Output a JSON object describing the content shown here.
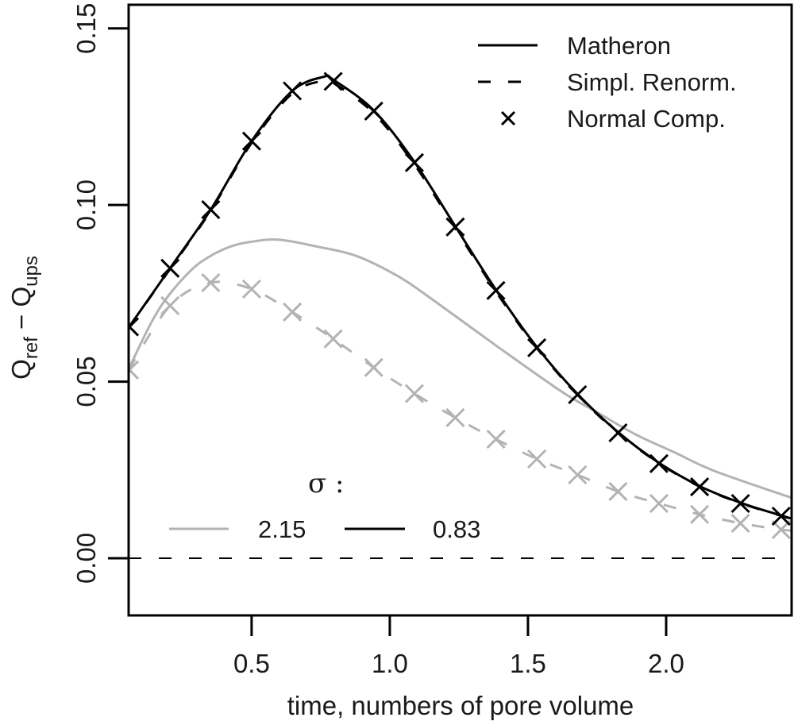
{
  "chart_data": {
    "type": "line",
    "title": "",
    "xlabel": "time, numbers of pore volume",
    "ylabel": {
      "base": "Q",
      "sub1": "ref",
      "op": " − ",
      "base2": "Q",
      "sub2": "ups"
    },
    "xlim": [
      0.055,
      2.454
    ],
    "ylim": [
      -0.0162,
      0.1567
    ],
    "x_ticks": [
      0.5,
      1.0,
      1.5,
      2.0
    ],
    "x_tick_labels": [
      "0.5",
      "1.0",
      "1.5",
      "2.0"
    ],
    "y_ticks": [
      0.0,
      0.05,
      0.1,
      0.15
    ],
    "y_tick_labels": [
      "0.00",
      "0.05",
      "0.10",
      "0.15"
    ],
    "grid": false,
    "reference_line": {
      "y": 0.0,
      "style": "dashed",
      "color": "#000000"
    },
    "method_legend": {
      "placement": "top-right",
      "entries": [
        {
          "label": "Matheron",
          "style": "solid"
        },
        {
          "label": "Simpl. Renorm.",
          "style": "dashed"
        },
        {
          "label": "Normal Comp.",
          "style": "cross"
        }
      ]
    },
    "sigma_legend": {
      "placement": "bottom-left",
      "title": "σ :",
      "entries": [
        {
          "label": "2.15",
          "color": "#b3b3b3"
        },
        {
          "label": "0.83",
          "color": "#000000"
        }
      ]
    },
    "series": [
      {
        "name": "Matheron, sigma=0.83",
        "method": "Matheron",
        "sigma": "0.83",
        "color": "#000000",
        "style": "solid",
        "x": [
          0.055,
          0.205,
          0.352,
          0.5,
          0.647,
          0.761,
          0.795,
          0.942,
          1.089,
          1.237,
          1.384,
          1.532,
          1.679,
          1.826,
          1.974,
          2.121,
          2.269,
          2.416,
          2.454
        ],
        "y": [
          0.0653,
          0.0821,
          0.0987,
          0.1181,
          0.1323,
          0.1363,
          0.1355,
          0.1268,
          0.1122,
          0.094,
          0.076,
          0.0598,
          0.0465,
          0.0357,
          0.027,
          0.0204,
          0.0157,
          0.0121,
          0.0112
        ]
      },
      {
        "name": "Simpl. Renorm., sigma=0.83",
        "method": "Simpl. Renorm.",
        "sigma": "0.83",
        "color": "#000000",
        "style": "dashed",
        "x": [
          0.055,
          0.205,
          0.352,
          0.5,
          0.647,
          0.761,
          0.795,
          0.942,
          1.089,
          1.237,
          1.384,
          1.532,
          1.679,
          1.826,
          1.974,
          2.121,
          2.269,
          2.416,
          2.454
        ],
        "y": [
          0.0653,
          0.0819,
          0.0984,
          0.1176,
          0.1316,
          0.1352,
          0.1346,
          0.126,
          0.1115,
          0.0934,
          0.0755,
          0.0595,
          0.0463,
          0.0355,
          0.0269,
          0.0203,
          0.0156,
          0.012,
          0.0111
        ]
      },
      {
        "name": "Normal Comp., sigma=0.83",
        "method": "Normal Comp.",
        "sigma": "0.83",
        "color": "#000000",
        "style": "cross",
        "x": [
          0.058,
          0.205,
          0.352,
          0.5,
          0.647,
          0.795,
          0.942,
          1.089,
          1.237,
          1.384,
          1.532,
          1.679,
          1.826,
          1.974,
          2.121,
          2.269,
          2.416
        ],
        "y": [
          0.0655,
          0.0821,
          0.0987,
          0.1181,
          0.1323,
          0.135,
          0.1266,
          0.112,
          0.0938,
          0.0758,
          0.0596,
          0.0463,
          0.0355,
          0.0268,
          0.0202,
          0.0155,
          0.0119
        ]
      },
      {
        "name": "Matheron, sigma=2.15",
        "method": "Matheron",
        "sigma": "2.15",
        "color": "#b3b3b3",
        "style": "solid",
        "x": [
          0.055,
          0.135,
          0.195,
          0.279,
          0.345,
          0.422,
          0.491,
          0.595,
          0.739,
          0.882,
          1.026,
          1.141,
          1.399,
          1.629,
          1.744,
          1.888,
          2.032,
          2.175,
          2.454
        ],
        "y": [
          0.0535,
          0.0664,
          0.0739,
          0.0814,
          0.0853,
          0.0882,
          0.0895,
          0.0902,
          0.0882,
          0.0855,
          0.08,
          0.074,
          0.0594,
          0.0468,
          0.0416,
          0.0351,
          0.0299,
          0.0247,
          0.0171
        ]
      },
      {
        "name": "Simpl. Renorm., sigma=2.15",
        "method": "Simpl. Renorm.",
        "sigma": "2.15",
        "color": "#b3b3b3",
        "style": "dashed",
        "x": [
          0.055,
          0.205,
          0.352,
          0.5,
          0.647,
          0.795,
          0.942,
          1.089,
          1.237,
          1.384,
          1.532,
          1.679,
          1.826,
          1.974,
          2.121,
          2.269,
          2.416,
          2.454
        ],
        "y": [
          0.0533,
          0.0715,
          0.078,
          0.0762,
          0.0697,
          0.0621,
          0.054,
          0.0466,
          0.0398,
          0.0337,
          0.0281,
          0.0236,
          0.0189,
          0.0155,
          0.0124,
          0.0099,
          0.0081,
          0.0078
        ]
      },
      {
        "name": "Normal Comp., sigma=2.15",
        "method": "Normal Comp.",
        "sigma": "2.15",
        "color": "#b3b3b3",
        "style": "cross",
        "x": [
          0.058,
          0.205,
          0.352,
          0.5,
          0.647,
          0.795,
          0.942,
          1.089,
          1.237,
          1.384,
          1.532,
          1.679,
          1.826,
          1.974,
          2.121,
          2.269,
          2.416
        ],
        "y": [
          0.0533,
          0.0715,
          0.078,
          0.0762,
          0.0697,
          0.0621,
          0.054,
          0.0466,
          0.0398,
          0.0337,
          0.0281,
          0.0236,
          0.0189,
          0.0155,
          0.0124,
          0.0099,
          0.0081
        ]
      }
    ]
  }
}
